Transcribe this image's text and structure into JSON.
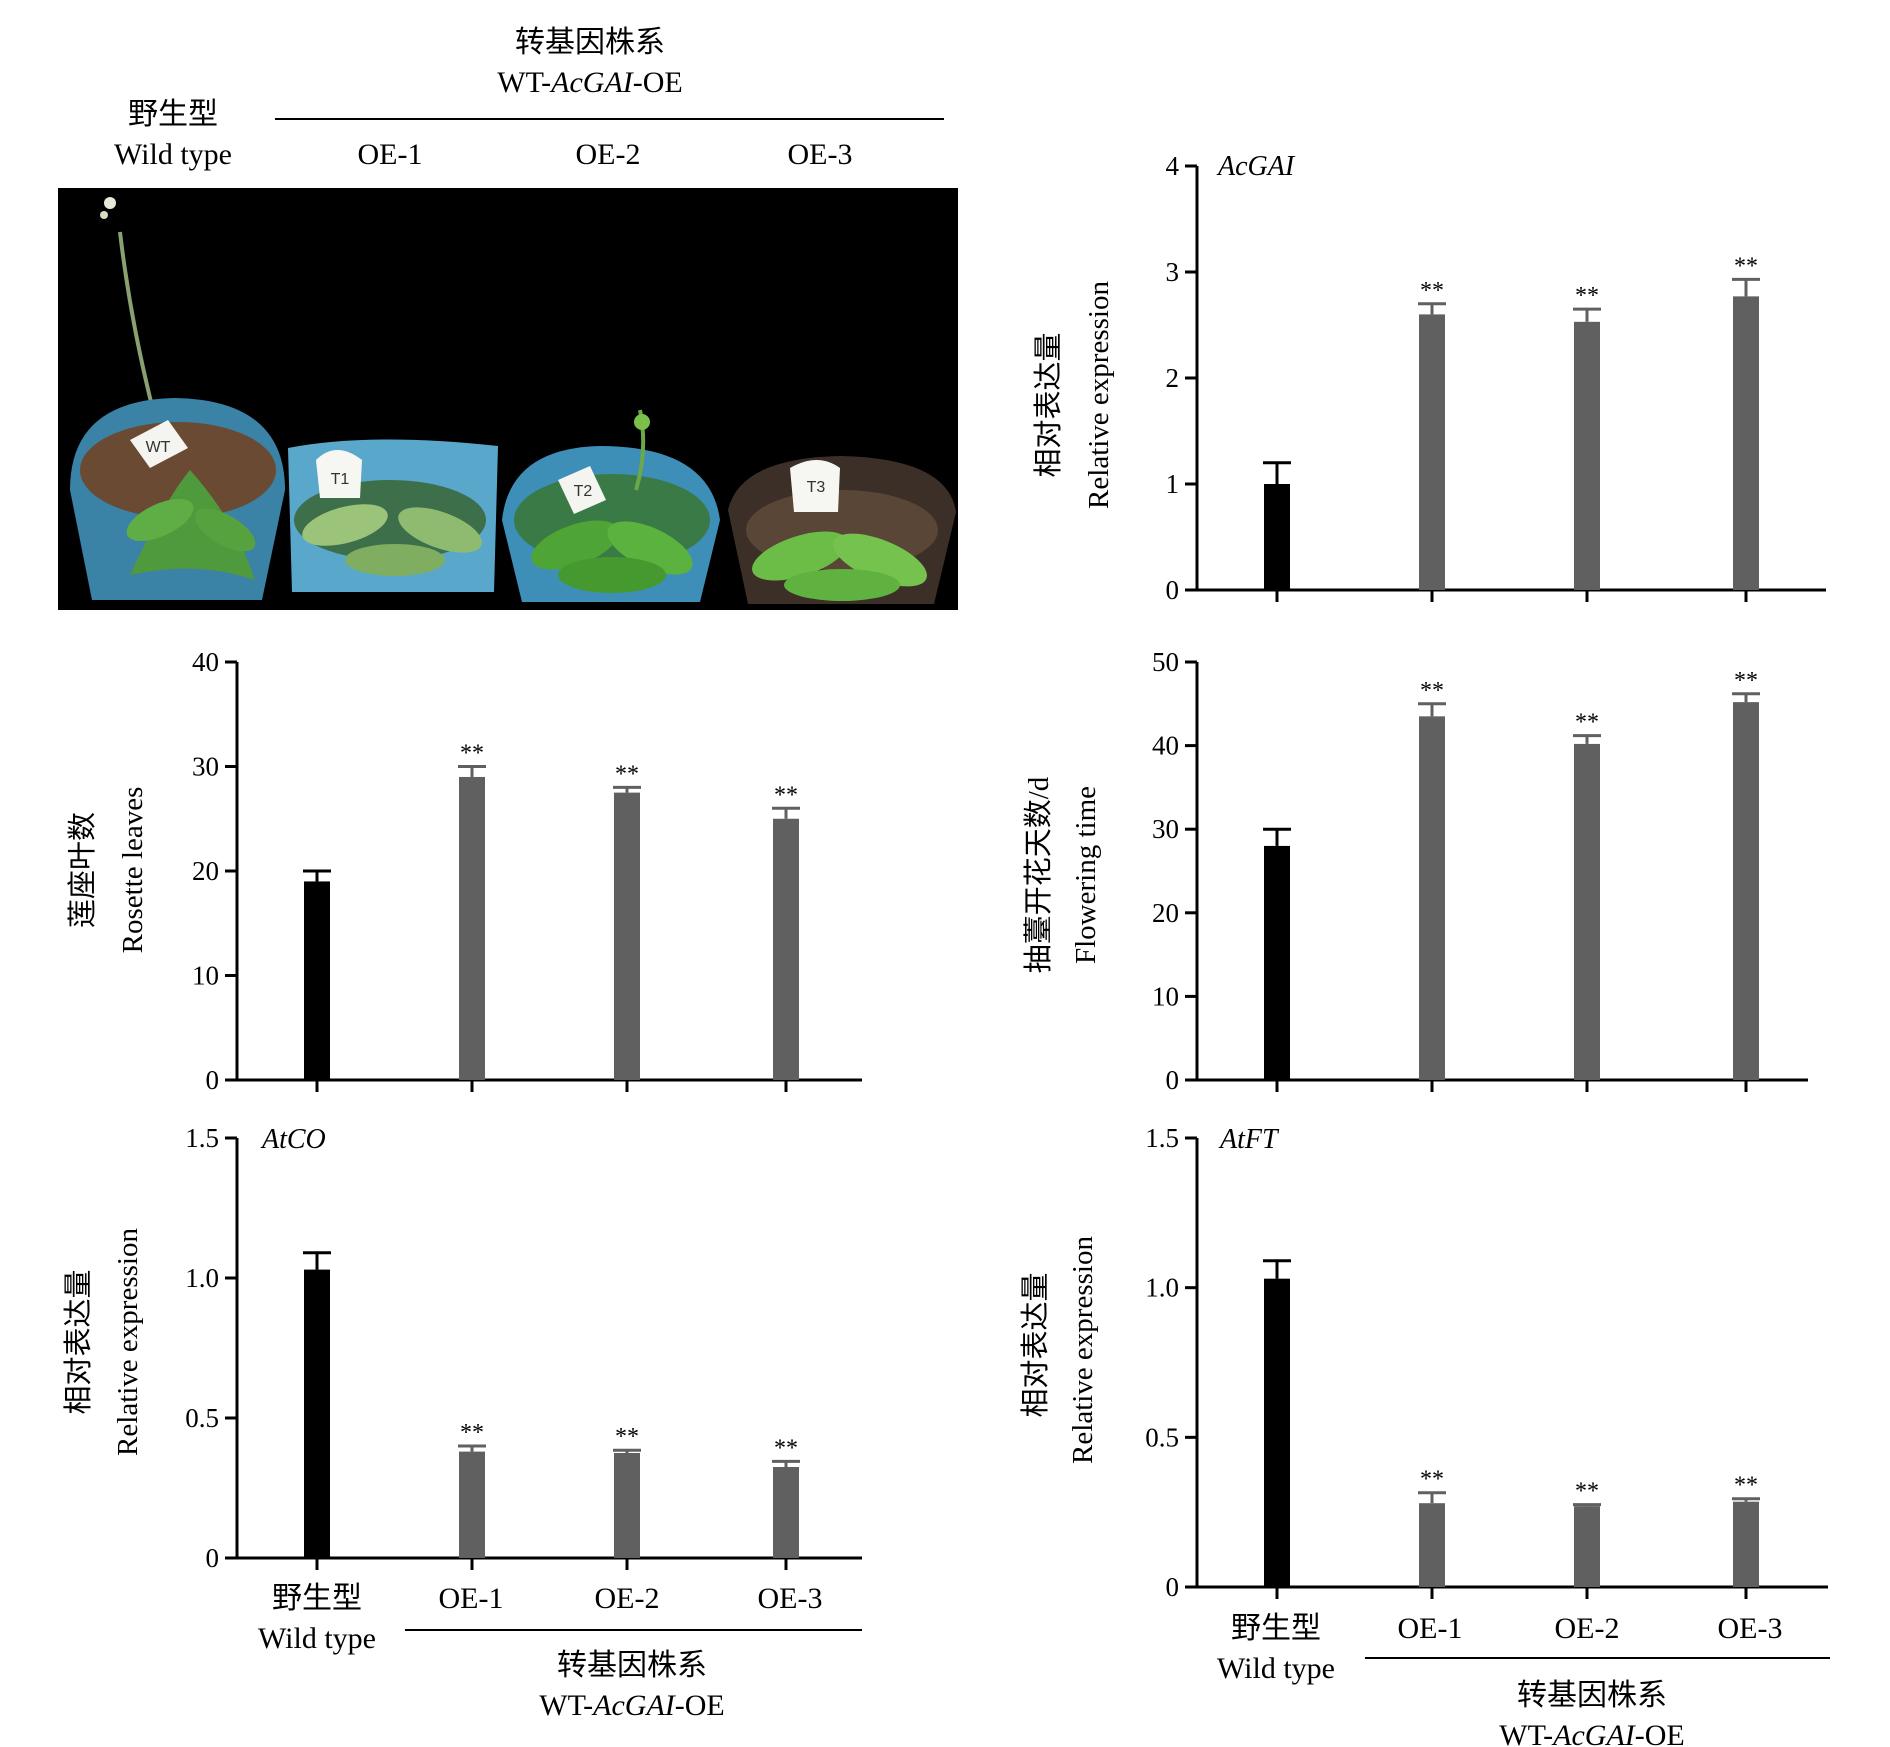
{
  "header": {
    "wild_type_zh": "野生型",
    "wild_type_en": "Wild type",
    "transgenic_zh": "转基因株系",
    "transgenic_en_prefix": "WT-",
    "transgenic_en_gene": "AcGAI",
    "transgenic_en_suffix": "-OE",
    "lines": [
      "OE-1",
      "OE-2",
      "OE-3"
    ]
  },
  "photo": {
    "pot_labels": [
      "WT",
      "T1",
      "T2",
      "T3"
    ]
  },
  "colors": {
    "wild_type_bar": "#000000",
    "transgenic_bar": "#606060"
  },
  "chart_data": [
    {
      "id": "acgai",
      "type": "bar",
      "gene_label": "AcGAI",
      "ylabel_zh": "相对表达量",
      "ylabel_en": "Relative expression",
      "categories": [
        "野生型 Wild type",
        "OE-1",
        "OE-2",
        "OE-3"
      ],
      "values": [
        1.0,
        2.6,
        2.53,
        2.77
      ],
      "errors": [
        0.2,
        0.1,
        0.12,
        0.16
      ],
      "significance": [
        "",
        "**",
        "**",
        "**"
      ],
      "ylim": [
        0,
        4
      ],
      "yticks": [
        "0",
        "1",
        "2",
        "3",
        "4"
      ]
    },
    {
      "id": "rosette",
      "type": "bar",
      "gene_label": "",
      "ylabel_zh": "莲座叶数",
      "ylabel_en": "Rosette leaves",
      "categories": [
        "野生型 Wild type",
        "OE-1",
        "OE-2",
        "OE-3"
      ],
      "values": [
        19,
        29,
        27.5,
        25
      ],
      "errors": [
        1.0,
        1.0,
        0.5,
        1.0
      ],
      "significance": [
        "",
        "**",
        "**",
        "**"
      ],
      "ylim": [
        0,
        40
      ],
      "yticks": [
        "0",
        "10",
        "20",
        "30",
        "40"
      ]
    },
    {
      "id": "flowering",
      "type": "bar",
      "gene_label": "",
      "ylabel_zh": "抽薹开花天数/d",
      "ylabel_en": "Flowering time",
      "categories": [
        "野生型 Wild type",
        "OE-1",
        "OE-2",
        "OE-3"
      ],
      "values": [
        28,
        43.5,
        40.2,
        45.2
      ],
      "errors": [
        2.0,
        1.5,
        1.0,
        1.0
      ],
      "significance": [
        "",
        "**",
        "**",
        "**"
      ],
      "ylim": [
        0,
        50
      ],
      "yticks": [
        "0",
        "10",
        "20",
        "30",
        "40",
        "50"
      ]
    },
    {
      "id": "atco",
      "type": "bar",
      "gene_label": "AtCO",
      "ylabel_zh": "相对表达量",
      "ylabel_en": "Relative expression",
      "categories": [
        "野生型 Wild type",
        "OE-1",
        "OE-2",
        "OE-3"
      ],
      "values": [
        1.03,
        0.38,
        0.375,
        0.325
      ],
      "errors": [
        0.06,
        0.02,
        0.01,
        0.02
      ],
      "significance": [
        "",
        "**",
        "**",
        "**"
      ],
      "ylim": [
        0,
        1.5
      ],
      "yticks": [
        "0",
        "0.5",
        "1.0",
        "1.5"
      ]
    },
    {
      "id": "atft",
      "type": "bar",
      "gene_label": "AtFT",
      "ylabel_zh": "相对表达量",
      "ylabel_en": "Relative expression",
      "categories": [
        "野生型 Wild type",
        "OE-1",
        "OE-2",
        "OE-3"
      ],
      "values": [
        1.03,
        0.28,
        0.27,
        0.285
      ],
      "errors": [
        0.06,
        0.035,
        0.005,
        0.01
      ],
      "significance": [
        "",
        "**",
        "**",
        "**"
      ],
      "ylim": [
        0,
        1.5
      ],
      "yticks": [
        "0",
        "0.5",
        "1.0",
        "1.5"
      ]
    }
  ]
}
